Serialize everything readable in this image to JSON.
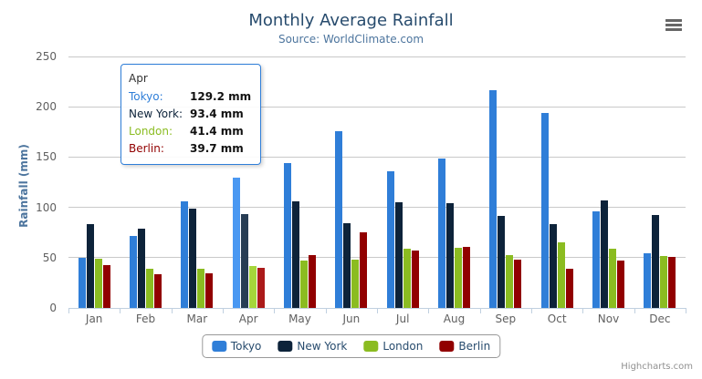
{
  "chart": {
    "title": "Monthly Average Rainfall",
    "subtitle": "Source: WorldClimate.com",
    "credits_label": "Highcharts.com"
  },
  "chart_data": {
    "type": "bar",
    "title": "Monthly Average Rainfall",
    "subtitle": "Source: WorldClimate.com",
    "categories": [
      "Jan",
      "Feb",
      "Mar",
      "Apr",
      "May",
      "Jun",
      "Jul",
      "Aug",
      "Sep",
      "Oct",
      "Nov",
      "Dec"
    ],
    "series": [
      {
        "name": "Tokyo",
        "color": "#2f7ed8",
        "hover_color": "#4a98f2",
        "values": [
          49.9,
          71.5,
          106.4,
          129.2,
          144.0,
          176.0,
          135.6,
          148.5,
          216.4,
          194.1,
          95.6,
          54.4
        ]
      },
      {
        "name": "New York",
        "color": "#0d233a",
        "hover_color": "#273d54",
        "values": [
          83.6,
          78.8,
          98.5,
          93.4,
          106.0,
          84.5,
          105.0,
          104.3,
          91.2,
          83.5,
          106.6,
          92.3
        ]
      },
      {
        "name": "London",
        "color": "#8bbc21",
        "hover_color": "#a5d63b",
        "values": [
          48.9,
          38.8,
          39.3,
          41.4,
          47.0,
          48.3,
          59.0,
          59.6,
          52.4,
          65.2,
          59.3,
          51.2
        ]
      },
      {
        "name": "Berlin",
        "color": "#910000",
        "hover_color": "#ab1a1a",
        "values": [
          42.4,
          33.2,
          34.5,
          39.7,
          52.6,
          75.5,
          57.4,
          60.4,
          47.6,
          39.1,
          46.8,
          51.1
        ]
      }
    ],
    "xlabel": "",
    "ylabel": "Rainfall (mm)",
    "ylim": [
      0,
      250
    ],
    "ytick_interval": 50,
    "grid": true,
    "legend_position": "bottom",
    "hovered_category": "Apr",
    "hovered_category_index": 3
  },
  "tooltip": {
    "header": "Apr",
    "border_color": "#2f7ed8",
    "rows": [
      {
        "label": "Tokyo:",
        "value": "129.2 mm",
        "color": "#2f7ed8"
      },
      {
        "label": "New York:",
        "value": "93.4 mm",
        "color": "#0d233a"
      },
      {
        "label": "London:",
        "value": "41.4 mm",
        "color": "#8bbc21"
      },
      {
        "label": "Berlin:",
        "value": "39.7 mm",
        "color": "#910000"
      }
    ]
  }
}
